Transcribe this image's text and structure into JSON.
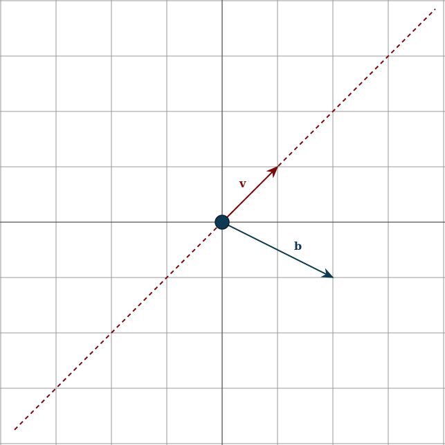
{
  "diagram": {
    "grid": {
      "x_range": [
        -4,
        4
      ],
      "y_range": [
        -4,
        4
      ],
      "step": 1
    },
    "colors": {
      "grid": "#9a9a9a",
      "axis": "#555555",
      "vector_v": "#7a0a0a",
      "vector_b": "#0d3a52",
      "origin": "#0d3a52"
    },
    "vectors": {
      "v": {
        "label": "v",
        "tip": [
          1,
          1
        ]
      },
      "b": {
        "label": "b",
        "tip": [
          2,
          -1
        ]
      }
    },
    "span_line": {
      "from": [
        -3.75,
        -3.75
      ],
      "to": [
        3.85,
        3.85
      ],
      "style": "dashed"
    },
    "origin": [
      0,
      0
    ]
  }
}
